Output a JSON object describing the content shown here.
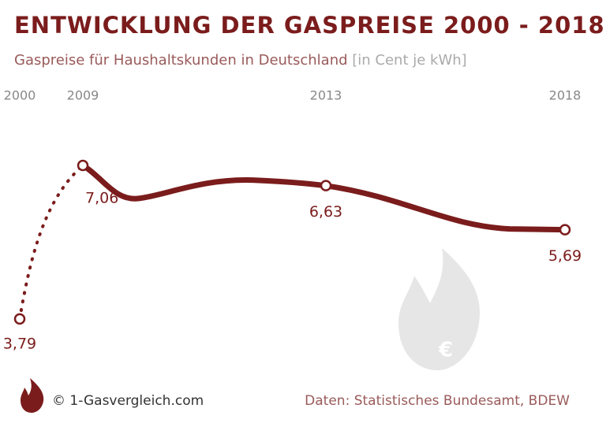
{
  "chart_data": {
    "type": "line",
    "title": "ENTWICKLUNG DER GASPREISE 2000 - 2018",
    "subtitle": "Gaspreise für Haushaltskunden in Deutschland",
    "unit": "[in Cent je kWh]",
    "categories": [
      "2000",
      "2009",
      "2013",
      "2018"
    ],
    "values": [
      3.79,
      7.06,
      6.63,
      5.69
    ],
    "value_labels": [
      "3,79",
      "7,06",
      "6,63",
      "5,69"
    ],
    "color": "#7b1c1c",
    "credit": "© 1-Gasvergleich.com",
    "source": "Daten: Statistisches Bundesamt, BDEW"
  }
}
